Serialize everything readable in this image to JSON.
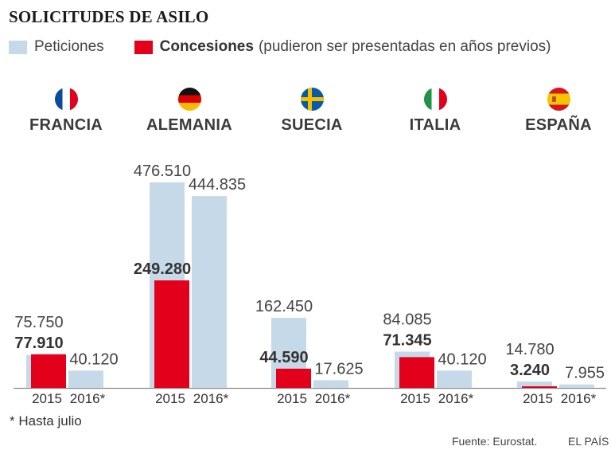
{
  "title": "SOLICITUDES DE ASILO",
  "legend": {
    "peticiones": {
      "label": "Peticiones",
      "color": "#c6d9e8"
    },
    "concesiones": {
      "label": "Concesiones",
      "note": "(pudieron ser presentadas en años previos)",
      "color": "#e2001a"
    }
  },
  "countries": [
    {
      "name": "FRANCIA",
      "flag": "france-flag-icon"
    },
    {
      "name": "ALEMANIA",
      "flag": "germany-flag-icon"
    },
    {
      "name": "SUECIA",
      "flag": "sweden-flag-icon"
    },
    {
      "name": "ITALIA",
      "flag": "italy-flag-icon"
    },
    {
      "name": "ESPAÑA",
      "flag": "spain-flag-icon"
    }
  ],
  "chart_data": {
    "type": "bar",
    "title": "SOLICITUDES DE ASILO",
    "groups": [
      "FRANCIA",
      "ALEMANIA",
      "SUECIA",
      "ITALIA",
      "ESPAÑA"
    ],
    "categories": [
      "2015",
      "2016*"
    ],
    "series": [
      {
        "name": "Peticiones 2015",
        "values": [
          75750,
          476510,
          162450,
          84085,
          14780
        ],
        "labels": [
          "75.750",
          "476.510",
          "162.450",
          "84.085",
          "14.780"
        ]
      },
      {
        "name": "Concesiones 2015",
        "values": [
          77910,
          249280,
          44590,
          71345,
          3240
        ],
        "labels": [
          "77.910",
          "249.280",
          "44.590",
          "71.345",
          "3.240"
        ]
      },
      {
        "name": "Peticiones 2016*",
        "values": [
          40120,
          444835,
          17625,
          40120,
          7955
        ],
        "labels": [
          "40.120",
          "444.835",
          "17.625",
          "40.120",
          "7.955"
        ]
      }
    ],
    "xlabel": "",
    "ylabel": "",
    "ylim": [
      0,
      476510
    ],
    "grid": false,
    "legend_position": "top-left"
  },
  "footnote": "* Hasta julio",
  "source": "Fuente: Eurostat.",
  "brand": "EL PAÍS"
}
